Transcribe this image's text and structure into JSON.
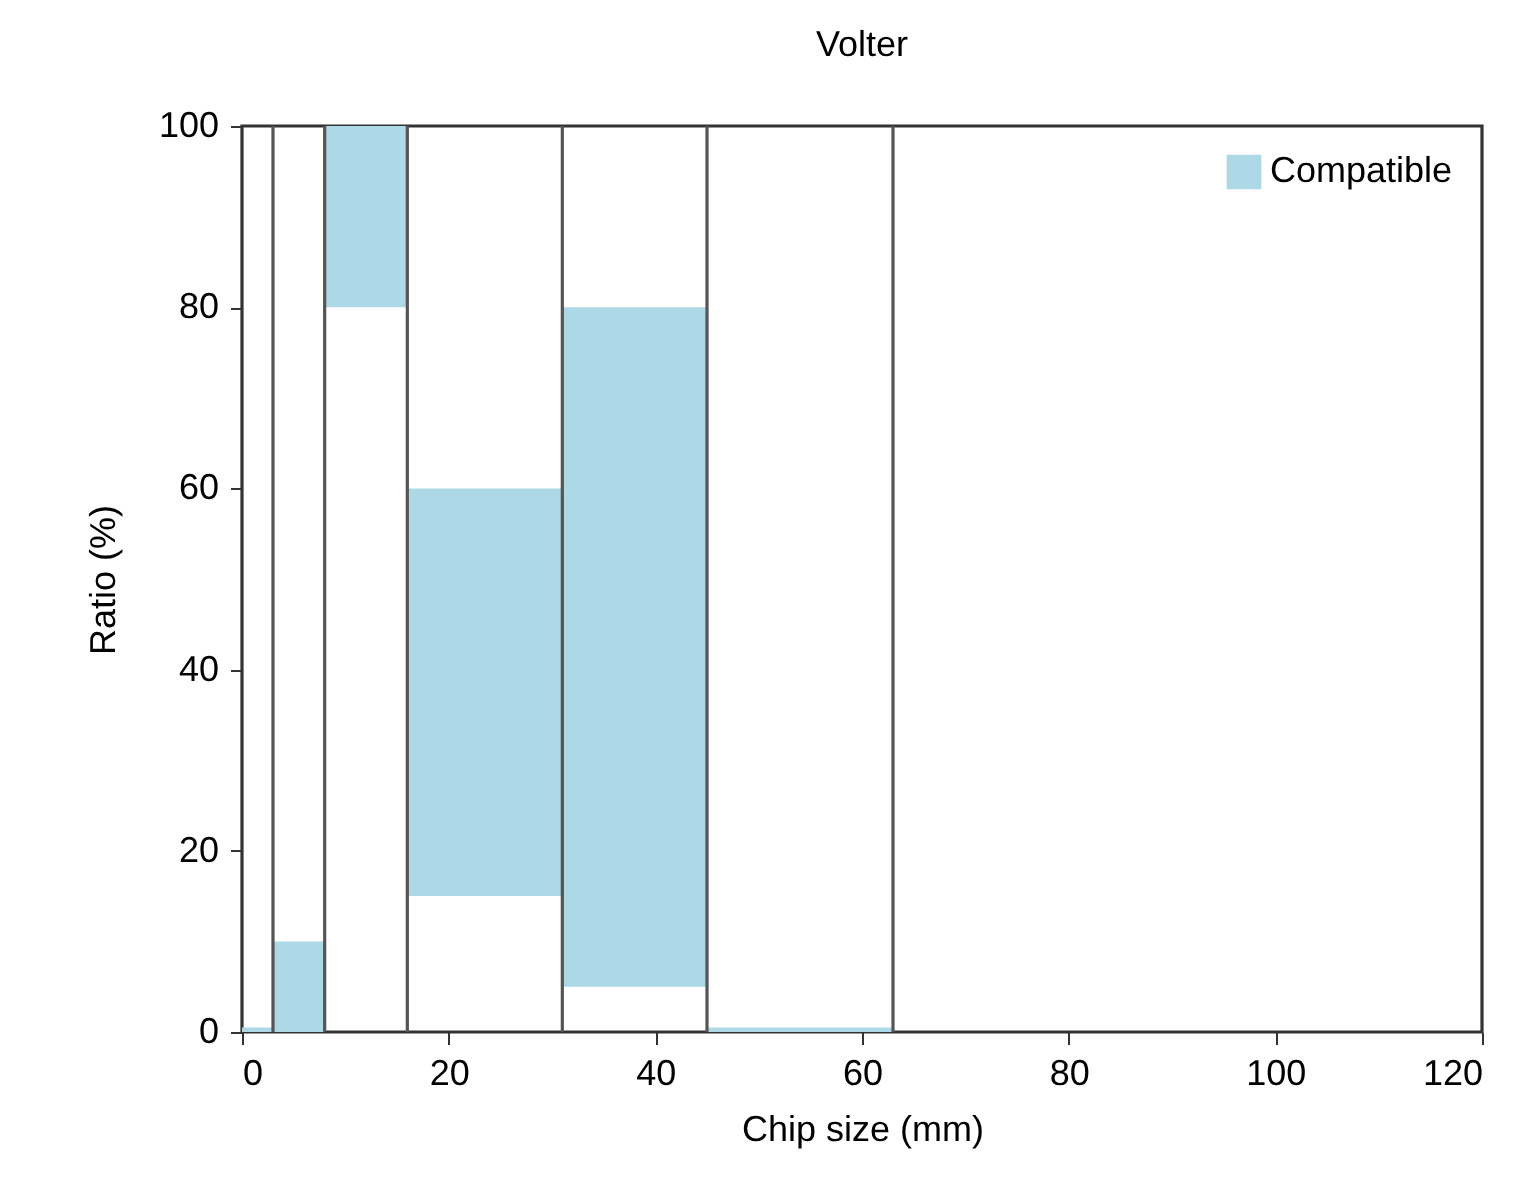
{
  "chart_data": {
    "type": "bar",
    "title": "Volter",
    "xlabel": "Chip size (mm)",
    "ylabel": "Ratio (%)",
    "x": [
      1.5,
      5.5,
      12,
      23.5,
      38,
      54
    ],
    "series": [
      {
        "name": "Compatible",
        "color": "#add8e6",
        "values": [
          0.5,
          10,
          20,
          45,
          75,
          0.5
        ],
        "base": [
          0,
          0,
          80,
          15,
          5,
          0
        ]
      }
    ],
    "xlim": [
      0,
      120
    ],
    "xticks": [
      0,
      20,
      40,
      60,
      80,
      100,
      120
    ],
    "ylim": [
      0,
      100
    ],
    "yticks": [
      0,
      20,
      40,
      60,
      80,
      100
    ],
    "ref_lines": [
      {
        "axis": "x",
        "value": 3
      },
      {
        "axis": "x",
        "value": 8
      },
      {
        "axis": "x",
        "value": 16
      },
      {
        "axis": "x",
        "value": 31
      },
      {
        "axis": "x",
        "value": 45
      },
      {
        "axis": "x",
        "value": 63
      }
    ],
    "grid": false,
    "legend": "top right"
  }
}
